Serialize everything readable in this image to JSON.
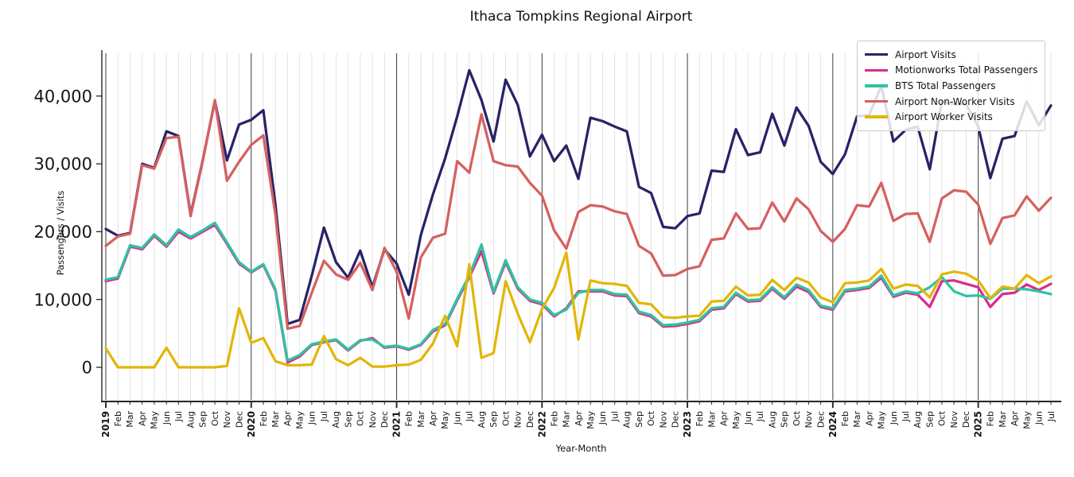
{
  "chart_data": {
    "type": "line",
    "title": "Ithaca Tompkins Regional Airport",
    "xlabel": "Year-Month",
    "ylabel": "Passengers / Visits",
    "grid": "vertical-monthly",
    "legend_position": "upper right",
    "ylim": [
      0,
      46500
    ],
    "yticks": [
      0,
      10000,
      20000,
      30000,
      40000
    ],
    "x_tick_labels": [
      "2019",
      "Feb",
      "Mar",
      "Apr",
      "May",
      "Jun",
      "Jul",
      "Aug",
      "Sep",
      "Oct",
      "Nov",
      "Dec",
      "2020",
      "Feb",
      "Mar",
      "Apr",
      "May",
      "Jun",
      "Jul",
      "Aug",
      "Sep",
      "Oct",
      "Nov",
      "Dec",
      "2021",
      "Feb",
      "Mar",
      "Apr",
      "May",
      "Jun",
      "Jul",
      "Aug",
      "Sep",
      "Oct",
      "Nov",
      "Dec",
      "2022",
      "Feb",
      "Mar",
      "Apr",
      "May",
      "Jun",
      "Jul",
      "Aug",
      "Sep",
      "Oct",
      "Nov",
      "Dec",
      "2023",
      "Feb",
      "Mar",
      "Apr",
      "May",
      "Jun",
      "Jul",
      "Aug",
      "Sep",
      "Oct",
      "Nov",
      "Dec",
      "2024",
      "Feb",
      "Mar",
      "Apr",
      "May",
      "Jun",
      "Jul",
      "Aug",
      "Sep",
      "Oct",
      "Nov",
      "Dec",
      "2025",
      "Feb",
      "Mar",
      "Apr",
      "May",
      "Jun",
      "Jul"
    ],
    "series": [
      {
        "name": "Airport Visits",
        "color": "#272366",
        "values": [
          20400,
          19400,
          19800,
          30000,
          29400,
          34800,
          34100,
          22500,
          30500,
          39300,
          30500,
          35800,
          36500,
          37900,
          24000,
          6400,
          7000,
          13500,
          20600,
          15500,
          13200,
          17200,
          11800,
          17400,
          15300,
          10700,
          19500,
          25500,
          30800,
          37000,
          43800,
          39400,
          33300,
          42400,
          38700,
          31100,
          34300,
          30400,
          32700,
          27800,
          36800,
          36300,
          35500,
          34800,
          26600,
          25700,
          20700,
          20500,
          22300,
          22700,
          29000,
          28800,
          35100,
          31300,
          31700,
          37400,
          32700,
          38300,
          35600,
          30300,
          28500,
          31400,
          37000,
          37200,
          41500,
          33300,
          35000,
          35500,
          29200,
          39200,
          38800,
          38800,
          35500,
          27900,
          33700,
          34100,
          39200,
          35700,
          38600
        ]
      },
      {
        "name": "Motionworks Total Passengers",
        "color": "#d62e8c",
        "values": [
          12700,
          13100,
          17800,
          17400,
          19400,
          17800,
          20000,
          19000,
          20000,
          21000,
          18200,
          15300,
          14000,
          15100,
          11300,
          700,
          1600,
          3300,
          3700,
          4000,
          2500,
          3900,
          4300,
          2900,
          3100,
          2600,
          3300,
          5300,
          6200,
          9900,
          13300,
          17100,
          10900,
          15500,
          11600,
          9800,
          9300,
          7500,
          8700,
          11200,
          11200,
          11200,
          10600,
          10500,
          8000,
          7500,
          6000,
          6100,
          6400,
          6800,
          8500,
          8700,
          10800,
          9700,
          9800,
          11600,
          10100,
          11900,
          11100,
          8900,
          8500,
          11200,
          11400,
          11700,
          13200,
          10400,
          11000,
          10700,
          8900,
          12700,
          12800,
          12300,
          11800,
          8900,
          10800,
          11000,
          12200,
          11400,
          12300
        ]
      },
      {
        "name": "BTS Total Passengers",
        "color": "#2fc3a1",
        "values": [
          12900,
          13300,
          18000,
          17600,
          19600,
          18000,
          20300,
          19200,
          20200,
          21300,
          18400,
          15500,
          14100,
          15200,
          11500,
          1000,
          1800,
          3400,
          3800,
          4100,
          2600,
          4000,
          4100,
          3000,
          3200,
          2700,
          3400,
          5500,
          6400,
          10100,
          13500,
          18100,
          11100,
          15800,
          11800,
          10000,
          9500,
          7700,
          8500,
          11000,
          11400,
          11400,
          10800,
          10700,
          8200,
          7700,
          6200,
          6300,
          6600,
          7000,
          8700,
          8900,
          11000,
          9900,
          10000,
          11800,
          10300,
          12200,
          11400,
          9100,
          8700,
          11400,
          11600,
          11900,
          13500,
          10600,
          11200,
          10900,
          11800,
          13300,
          11200,
          10500,
          10600,
          10100,
          11600,
          11600,
          11500,
          11200,
          10800
        ]
      },
      {
        "name": "Airport Non-Worker Visits",
        "color": "#d66060",
        "values": [
          17900,
          19300,
          19700,
          29800,
          29300,
          33800,
          34000,
          22300,
          30400,
          39400,
          27500,
          30300,
          32800,
          34200,
          22500,
          5700,
          6100,
          11000,
          15700,
          13700,
          12900,
          15400,
          11400,
          17600,
          14100,
          7200,
          16200,
          19100,
          19700,
          30400,
          28700,
          37300,
          30400,
          29800,
          29600,
          27200,
          25300,
          20200,
          17500,
          22900,
          23900,
          23700,
          23000,
          22600,
          17900,
          16800,
          13500,
          13600,
          14500,
          14900,
          18800,
          19000,
          22700,
          20400,
          20500,
          24300,
          21500,
          24900,
          23300,
          20100,
          18500,
          20400,
          23900,
          23700,
          27200,
          21600,
          22600,
          22700,
          18500,
          24900,
          26100,
          25900,
          24000,
          18200,
          22000,
          22400,
          25200,
          23100,
          25000
        ]
      },
      {
        "name": "Airport Worker Visits",
        "color": "#e2b607",
        "values": [
          2800,
          0,
          0,
          0,
          0,
          2900,
          0,
          0,
          0,
          0,
          200,
          8700,
          3600,
          4300,
          900,
          300,
          300,
          400,
          4600,
          1200,
          300,
          1400,
          100,
          100,
          300,
          400,
          1100,
          3500,
          7600,
          3100,
          15200,
          1400,
          2100,
          12700,
          7900,
          3700,
          8600,
          11700,
          16900,
          4100,
          12800,
          12400,
          12300,
          12000,
          9500,
          9300,
          7400,
          7300,
          7500,
          7600,
          9700,
          9800,
          11900,
          10600,
          10700,
          12900,
          11400,
          13200,
          12500,
          10300,
          9600,
          12400,
          12500,
          12800,
          14500,
          11600,
          12200,
          12000,
          10300,
          13700,
          14100,
          13800,
          12800,
          10200,
          11900,
          11600,
          13600,
          12400,
          13400
        ]
      }
    ]
  }
}
